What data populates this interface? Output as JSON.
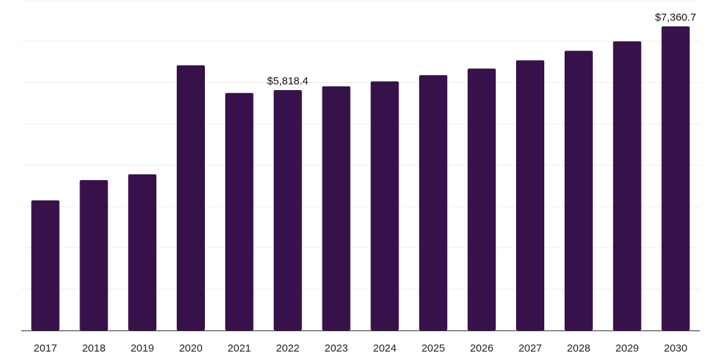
{
  "chart_data": {
    "type": "bar",
    "categories": [
      "2017",
      "2018",
      "2019",
      "2020",
      "2021",
      "2022",
      "2023",
      "2024",
      "2025",
      "2026",
      "2027",
      "2028",
      "2029",
      "2030"
    ],
    "values": [
      3150,
      3640,
      3780,
      6420,
      5750,
      5818.4,
      5910,
      6030,
      6180,
      6340,
      6540,
      6770,
      7000,
      7360.7
    ],
    "data_labels": [
      {
        "index": 5,
        "text": "$5,818.4"
      },
      {
        "index": 13,
        "text": "$7,360.7"
      }
    ],
    "ylim": [
      0,
      8000
    ],
    "grid": true,
    "colors": {
      "bar": "#37114a",
      "grid": "#eeeeee",
      "axis": "#333333"
    }
  }
}
